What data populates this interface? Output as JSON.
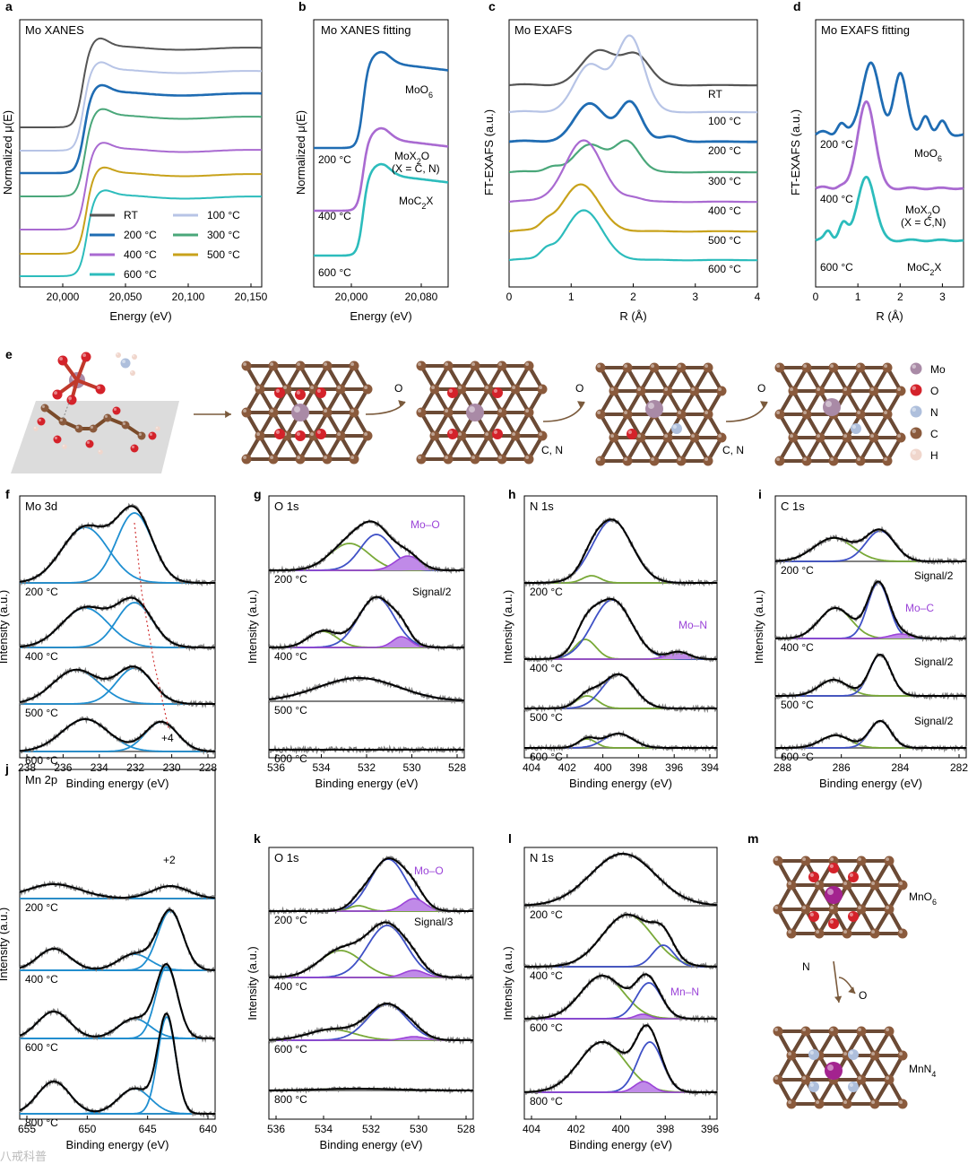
{
  "colors": {
    "rt": "#555555",
    "c100": "#b7c4e6",
    "c200": "#1f6cb3",
    "c300": "#4aa77a",
    "c400": "#a96ad1",
    "c500": "#c8a21b",
    "c600": "#2cbcbc",
    "fit_total": "#000000",
    "raw": "#808080",
    "blue": "#3f51c6",
    "lightblue": "#1f8fd1",
    "green": "#79a938",
    "purple": "#9b44d8",
    "carbon": "#8a5a3c",
    "oxygen": "#d4222a",
    "nitrogen": "#aebfdc",
    "molybdenum": "#a98aa6",
    "manganese": "#a3238f",
    "hydrogen": "#f0d6cc"
  },
  "panels": {
    "a": {
      "label": "a",
      "title": "Mo XANES",
      "xlabel": "Energy (eV)",
      "ylabel": "Normalized μ(E)",
      "xticks": [
        "20,000",
        "20,050",
        "20,100",
        "20,150"
      ],
      "legend": [
        {
          "name": "RT",
          "color": "rt"
        },
        {
          "name": "100 °C",
          "color": "c100"
        },
        {
          "name": "200 °C",
          "color": "c200"
        },
        {
          "name": "300 °C",
          "color": "c300"
        },
        {
          "name": "400 °C",
          "color": "c400"
        },
        {
          "name": "500 °C",
          "color": "c500"
        },
        {
          "name": "600 °C",
          "color": "c600"
        }
      ]
    },
    "b": {
      "label": "b",
      "title": "Mo XANES fitting",
      "xlabel": "Energy (eV)",
      "ylabel": "Normalized μ(E)",
      "xticks": [
        "20,000",
        "20,080"
      ],
      "curve_labels": [
        "MoO6",
        "MoX2O",
        "(X = C, N)",
        "MoC2X"
      ],
      "temps": [
        "200 °C",
        "400 °C",
        "600 °C"
      ]
    },
    "c": {
      "label": "c",
      "title": "Mo EXAFS",
      "xlabel": "R (Å)",
      "ylabel": "FT-EXAFS (a.u.)",
      "xticks": [
        "0",
        "1",
        "2",
        "3",
        "4"
      ],
      "temps": [
        "RT",
        "100 °C",
        "200 °C",
        "300 °C",
        "400 °C",
        "500 °C",
        "600 °C"
      ]
    },
    "d": {
      "label": "d",
      "title": "Mo EXAFS fitting",
      "xlabel": "R (Å)",
      "ylabel": "FT-EXAFS (a.u.)",
      "xticks": [
        "0",
        "1",
        "2",
        "3"
      ],
      "curve_labels": [
        "MoO6",
        "MoX2O",
        "(X = C,N)",
        "MoC2X"
      ],
      "temps": [
        "200 °C",
        "400 °C",
        "600 °C"
      ]
    },
    "e": {
      "label": "e",
      "legend": [
        {
          "name": "Mo",
          "color": "molybdenum"
        },
        {
          "name": "O",
          "color": "oxygen"
        },
        {
          "name": "N",
          "color": "nitrogen"
        },
        {
          "name": "C",
          "color": "carbon"
        },
        {
          "name": "H",
          "color": "hydrogen"
        }
      ],
      "arrow_labels": [
        "O",
        "O",
        "C, N",
        "O",
        "C, N"
      ]
    },
    "f": {
      "label": "f",
      "title": "Mo 3d",
      "xlabel": "Binding energy (eV)",
      "ylabel": "Intensity (a.u.)",
      "xticks": [
        "238",
        "236",
        "234",
        "232",
        "230",
        "228"
      ],
      "temps": [
        "200 °C",
        "400 °C",
        "500 °C",
        "600 °C"
      ],
      "annotation": "+4"
    },
    "g": {
      "label": "g",
      "title": "O 1s",
      "xlabel": "Binding energy (eV)",
      "ylabel": "Intensity (a.u.)",
      "xticks": [
        "536",
        "534",
        "532",
        "530",
        "528"
      ],
      "temps": [
        "200 °C",
        "400 °C",
        "500 °C",
        "600 °C"
      ],
      "annotations": [
        "Mo–O",
        "Signal/2"
      ]
    },
    "h": {
      "label": "h",
      "title": "N 1s",
      "xlabel": "Binding energy (eV)",
      "ylabel": "Intensity (a.u.)",
      "xticks": [
        "404",
        "402",
        "400",
        "398",
        "396",
        "394"
      ],
      "temps": [
        "200 °C",
        "400 °C",
        "500 °C",
        "600 °C"
      ],
      "annotations": [
        "Mo–N"
      ]
    },
    "i": {
      "label": "i",
      "title": "C 1s",
      "xlabel": "Binding energy (eV)",
      "ylabel": "Intensity (a.u.)",
      "xticks": [
        "288",
        "286",
        "284",
        "282"
      ],
      "temps": [
        "200 °C",
        "400 °C",
        "500 °C",
        "600 °C"
      ],
      "annotations": [
        "Signal/2",
        "Mo–C",
        "Signal/2",
        "Signal/2"
      ]
    },
    "j": {
      "label": "j",
      "title": "Mn 2p",
      "xlabel": "Binding energy (eV)",
      "ylabel": "Intensity (a.u.)",
      "xticks": [
        "655",
        "650",
        "645",
        "640"
      ],
      "temps": [
        "200 °C",
        "400 °C",
        "600 °C",
        "800 °C"
      ],
      "annotation": "+2"
    },
    "k": {
      "label": "k",
      "title": "O 1s",
      "xlabel": "Binding energy (eV)",
      "ylabel": "Intensity (a.u.)",
      "xticks": [
        "536",
        "534",
        "532",
        "530",
        "528"
      ],
      "temps": [
        "200 °C",
        "400 °C",
        "600 °C",
        "800 °C"
      ],
      "annotations": [
        "Mo–O",
        "Signal/3"
      ]
    },
    "l": {
      "label": "l",
      "title": "N 1s",
      "xlabel": "Binding energy (eV)",
      "ylabel": "Intensity (a.u.)",
      "xticks": [
        "404",
        "402",
        "400",
        "398",
        "396"
      ],
      "temps": [
        "200 °C",
        "400 °C",
        "600 °C",
        "800 °C"
      ],
      "annotations": [
        "Mn–N"
      ]
    },
    "m": {
      "label": "m",
      "structures": [
        "MnO6",
        "MnN4"
      ],
      "arrow_labels": [
        "N",
        "O"
      ]
    }
  },
  "watermark": "八戒科普"
}
